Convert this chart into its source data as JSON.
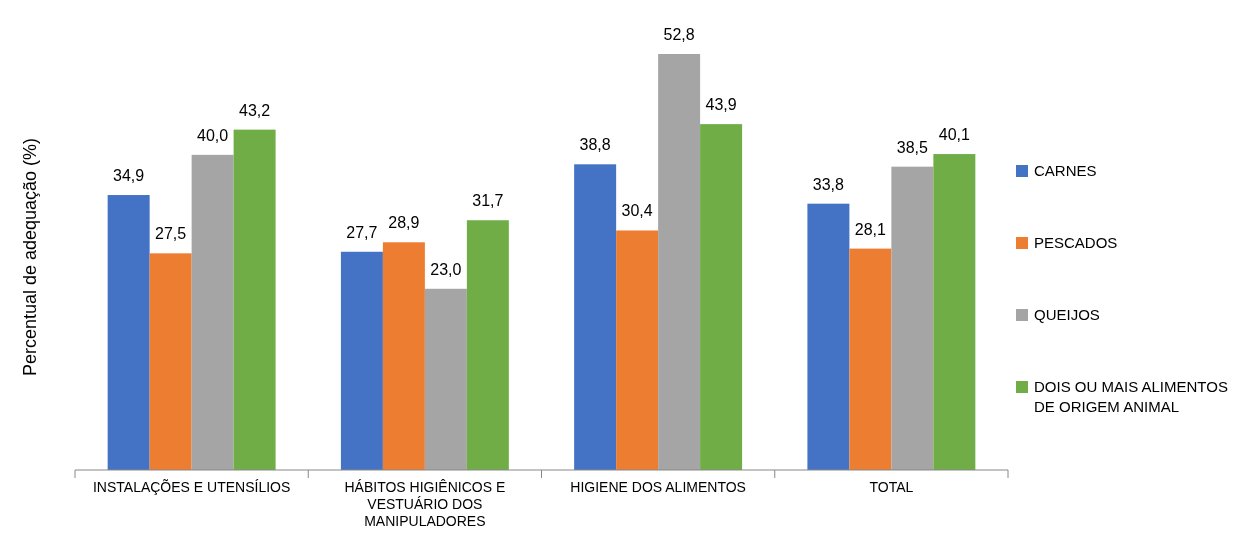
{
  "chart_data": {
    "type": "bar",
    "ylabel": "Percentual de adequação (%)",
    "categories": [
      "INSTALAÇÕES E UTENSÍLIOS",
      "HÁBITOS HIGIÊNICOS E VESTUÁRIO DOS MANIPULADORES",
      "HIGIENE DOS ALIMENTOS",
      "TOTAL"
    ],
    "series": [
      {
        "name": "CARNES",
        "color": "#4472c4",
        "values": [
          34.9,
          27.7,
          38.8,
          33.8
        ],
        "value_labels": [
          "34,9",
          "27,7",
          "38,8",
          "33,8"
        ]
      },
      {
        "name": "PESCADOS",
        "color": "#ed7d31",
        "values": [
          27.5,
          28.9,
          30.4,
          28.1
        ],
        "value_labels": [
          "27,5",
          "28,9",
          "30,4",
          "28,1"
        ]
      },
      {
        "name": "QUEIJOS",
        "color": "#a5a5a5",
        "values": [
          40.0,
          23.0,
          52.8,
          38.5
        ],
        "value_labels": [
          "40,0",
          "23,0",
          "52,8",
          "38,5"
        ]
      },
      {
        "name": "DOIS OU MAIS ALIMENTOS DE ORIGEM ANIMAL",
        "color": "#70ad47",
        "values": [
          43.2,
          31.7,
          43.9,
          40.1
        ],
        "value_labels": [
          "43,2",
          "31,7",
          "43,9",
          "40,1"
        ]
      }
    ],
    "legend": "right"
  }
}
